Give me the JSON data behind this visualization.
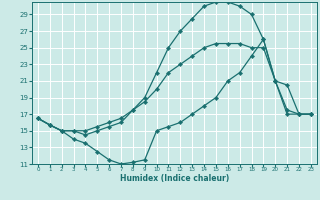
{
  "xlabel": "Humidex (Indice chaleur)",
  "bg_color": "#cceae7",
  "line_color": "#1a7070",
  "grid_color": "#ffffff",
  "xlim": [
    -0.5,
    23.5
  ],
  "ylim": [
    11,
    30
  ],
  "xticks": [
    0,
    1,
    2,
    3,
    4,
    5,
    6,
    7,
    8,
    9,
    10,
    11,
    12,
    13,
    14,
    15,
    16,
    17,
    18,
    19,
    20,
    21,
    22,
    23
  ],
  "yticks": [
    11,
    13,
    15,
    17,
    19,
    21,
    23,
    25,
    27,
    29
  ],
  "line1_x": [
    0,
    1,
    2,
    3,
    4,
    5,
    6,
    7,
    8,
    9,
    10,
    11,
    12,
    13,
    14,
    15,
    16,
    17,
    18,
    19,
    20,
    21,
    22,
    23
  ],
  "line1_y": [
    16.5,
    15.7,
    15.0,
    14.0,
    13.5,
    12.5,
    11.5,
    11.0,
    11.2,
    11.5,
    15.0,
    15.5,
    16.0,
    17.0,
    18.0,
    19.0,
    21.0,
    22.0,
    24.0,
    26.0,
    21.0,
    20.5,
    17.0,
    17.0
  ],
  "line2_x": [
    0,
    1,
    2,
    3,
    4,
    5,
    6,
    7,
    8,
    9,
    10,
    11,
    12,
    13,
    14,
    15,
    16,
    17,
    18,
    19,
    20,
    21,
    22,
    23
  ],
  "line2_y": [
    16.5,
    15.7,
    15.0,
    15.0,
    14.5,
    15.0,
    15.5,
    16.0,
    17.5,
    19.0,
    22.0,
    25.0,
    27.0,
    28.5,
    30.0,
    30.5,
    30.5,
    30.0,
    29.0,
    26.0,
    21.0,
    17.0,
    17.0,
    17.0
  ],
  "line3_x": [
    0,
    1,
    2,
    3,
    4,
    5,
    6,
    7,
    8,
    9,
    10,
    11,
    12,
    13,
    14,
    15,
    16,
    17,
    18,
    19,
    20,
    21,
    22,
    23
  ],
  "line3_y": [
    16.5,
    15.7,
    15.0,
    15.0,
    15.0,
    15.5,
    16.0,
    16.5,
    17.5,
    18.5,
    20.0,
    22.0,
    23.0,
    24.0,
    25.0,
    25.5,
    25.5,
    25.5,
    25.0,
    25.0,
    21.0,
    17.5,
    17.0,
    17.0
  ]
}
